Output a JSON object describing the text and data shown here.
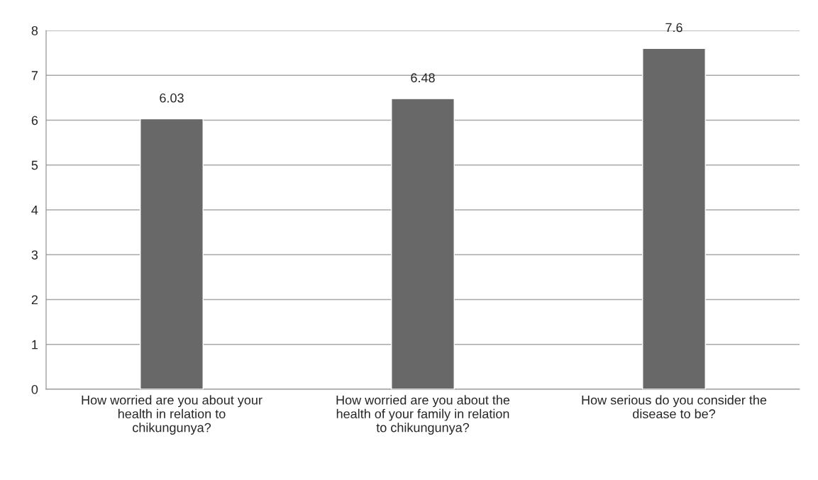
{
  "chart_data": {
    "type": "bar",
    "categories": [
      "How worried are you about your\nhealth in relation to\nchikungunya?",
      "How worried are you about the\nhealth of your family in relation\nto chikungunya?",
      "How serious do you consider the\ndisease to be?"
    ],
    "values": [
      6.03,
      6.48,
      7.6
    ],
    "color": "#686868",
    "ylim": [
      0,
      8
    ],
    "yticks": [
      0,
      1,
      2,
      3,
      4,
      5,
      6,
      7,
      8
    ],
    "grid": "y",
    "data_labels": true
  }
}
